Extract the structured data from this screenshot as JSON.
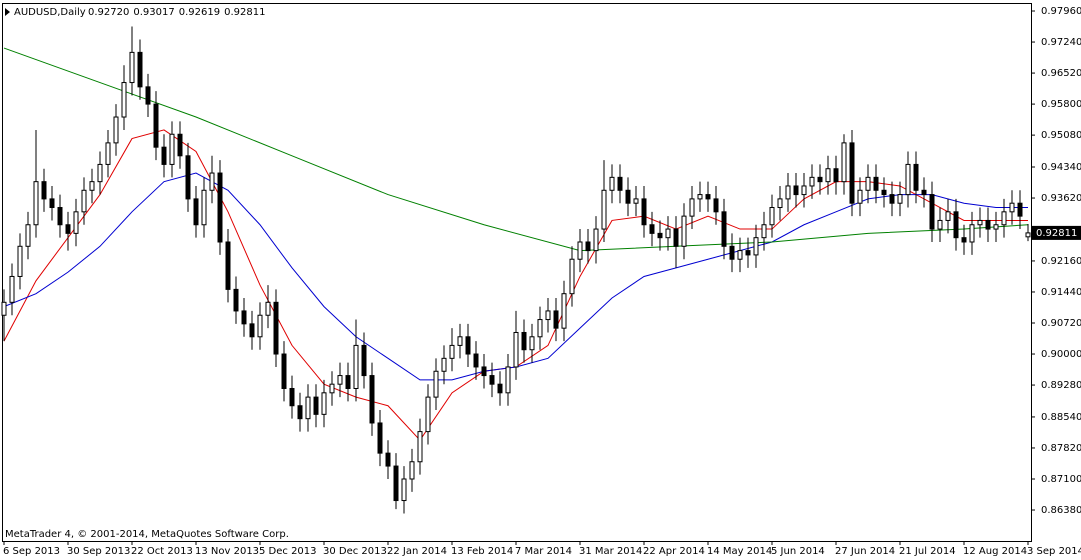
{
  "chart_data": {
    "type": "candlestick",
    "title": "AUDUSD,Daily",
    "quote": [
      "0.92720",
      "0.93017",
      "0.92619",
      "0.92811"
    ],
    "footer": "MetaTrader 4, © 2001-2014, MetaQuotes Software Corp.",
    "bull_color": "#ffffff",
    "bear_color": "#000000",
    "xlim": [
      -0.5,
      128.25
    ],
    "ylim": [
      0.85661,
      0.98146
    ],
    "xticks": [
      {
        "value": 0,
        "label": "6 Sep 2013"
      },
      {
        "value": 8,
        "label": "30 Sep 2013"
      },
      {
        "value": 16,
        "label": "22 Oct 2013"
      },
      {
        "value": 24,
        "label": "13 Nov 2013"
      },
      {
        "value": 32,
        "label": "5 Dec 2013"
      },
      {
        "value": 40,
        "label": "30 Dec 2013"
      },
      {
        "value": 48,
        "label": "22 Jan 2014"
      },
      {
        "value": 56,
        "label": "13 Feb 2014"
      },
      {
        "value": 64,
        "label": "7 Mar 2014"
      },
      {
        "value": 72,
        "label": "31 Mar 2014"
      },
      {
        "value": 80,
        "label": "22 Apr 2014"
      },
      {
        "value": 88,
        "label": "14 May 2014"
      },
      {
        "value": 96,
        "label": "5 Jun 2014"
      },
      {
        "value": 104,
        "label": "27 Jun 2014"
      },
      {
        "value": 112,
        "label": "21 Jul 2014"
      },
      {
        "value": 120,
        "label": "12 Aug 2014"
      },
      {
        "value": 128,
        "label": "3 Sep 2014"
      }
    ],
    "yticks": [
      {
        "value": 0.9796,
        "label": "0.97960"
      },
      {
        "value": 0.9724,
        "label": "0.97240"
      },
      {
        "value": 0.9652,
        "label": "0.96520"
      },
      {
        "value": 0.958,
        "label": "0.95800"
      },
      {
        "value": 0.9508,
        "label": "0.95080"
      },
      {
        "value": 0.9434,
        "label": "0.94340"
      },
      {
        "value": 0.9362,
        "label": "0.93620"
      },
      {
        "value": 0.9216,
        "label": "0.92160"
      },
      {
        "value": 0.9144,
        "label": "0.91440"
      },
      {
        "value": 0.9072,
        "label": "0.90720"
      },
      {
        "value": 0.9,
        "label": "0.90000"
      },
      {
        "value": 0.8928,
        "label": "0.89280"
      },
      {
        "value": 0.8854,
        "label": "0.88540"
      },
      {
        "value": 0.8782,
        "label": "0.87820"
      },
      {
        "value": 0.871,
        "label": "0.87100"
      },
      {
        "value": 0.8638,
        "label": "0.86380"
      }
    ],
    "price_label": {
      "value": 0.92811,
      "label": "0.92811"
    },
    "ohlc": [
      [
        0.909,
        0.915,
        0.903,
        0.912
      ],
      [
        0.912,
        0.921,
        0.909,
        0.918
      ],
      [
        0.918,
        0.928,
        0.915,
        0.925
      ],
      [
        0.925,
        0.933,
        0.922,
        0.93
      ],
      [
        0.93,
        0.952,
        0.927,
        0.94
      ],
      [
        0.94,
        0.943,
        0.933,
        0.936
      ],
      [
        0.936,
        0.939,
        0.931,
        0.934
      ],
      [
        0.934,
        0.937,
        0.927,
        0.93
      ],
      [
        0.93,
        0.933,
        0.924,
        0.928
      ],
      [
        0.928,
        0.936,
        0.925,
        0.933
      ],
      [
        0.933,
        0.941,
        0.93,
        0.938
      ],
      [
        0.938,
        0.943,
        0.935,
        0.94
      ],
      [
        0.94,
        0.947,
        0.937,
        0.944
      ],
      [
        0.944,
        0.952,
        0.941,
        0.949
      ],
      [
        0.949,
        0.958,
        0.946,
        0.955
      ],
      [
        0.955,
        0.967,
        0.952,
        0.963
      ],
      [
        0.963,
        0.976,
        0.96,
        0.97
      ],
      [
        0.97,
        0.973,
        0.959,
        0.962
      ],
      [
        0.962,
        0.965,
        0.955,
        0.958
      ],
      [
        0.958,
        0.961,
        0.945,
        0.948
      ],
      [
        0.948,
        0.951,
        0.941,
        0.944
      ],
      [
        0.944,
        0.954,
        0.941,
        0.951
      ],
      [
        0.951,
        0.954,
        0.943,
        0.946
      ],
      [
        0.946,
        0.949,
        0.933,
        0.936
      ],
      [
        0.936,
        0.939,
        0.927,
        0.93
      ],
      [
        0.93,
        0.941,
        0.927,
        0.938
      ],
      [
        0.938,
        0.946,
        0.935,
        0.942
      ],
      [
        0.942,
        0.945,
        0.923,
        0.926
      ],
      [
        0.926,
        0.929,
        0.912,
        0.915
      ],
      [
        0.915,
        0.918,
        0.907,
        0.91
      ],
      [
        0.91,
        0.913,
        0.904,
        0.907
      ],
      [
        0.907,
        0.91,
        0.901,
        0.904
      ],
      [
        0.904,
        0.912,
        0.901,
        0.909
      ],
      [
        0.909,
        0.916,
        0.906,
        0.912
      ],
      [
        0.912,
        0.915,
        0.897,
        0.9
      ],
      [
        0.9,
        0.903,
        0.889,
        0.892
      ],
      [
        0.892,
        0.895,
        0.885,
        0.888
      ],
      [
        0.888,
        0.891,
        0.882,
        0.885
      ],
      [
        0.885,
        0.893,
        0.882,
        0.89
      ],
      [
        0.89,
        0.893,
        0.883,
        0.886
      ],
      [
        0.886,
        0.894,
        0.883,
        0.891
      ],
      [
        0.891,
        0.896,
        0.888,
        0.893
      ],
      [
        0.893,
        0.898,
        0.89,
        0.895
      ],
      [
        0.895,
        0.898,
        0.889,
        0.892
      ],
      [
        0.892,
        0.908,
        0.889,
        0.902
      ],
      [
        0.902,
        0.905,
        0.892,
        0.895
      ],
      [
        0.895,
        0.898,
        0.881,
        0.884
      ],
      [
        0.884,
        0.887,
        0.874,
        0.877
      ],
      [
        0.877,
        0.88,
        0.871,
        0.874
      ],
      [
        0.874,
        0.877,
        0.864,
        0.866
      ],
      [
        0.866,
        0.874,
        0.863,
        0.871
      ],
      [
        0.871,
        0.878,
        0.868,
        0.875
      ],
      [
        0.875,
        0.885,
        0.872,
        0.882
      ],
      [
        0.882,
        0.893,
        0.879,
        0.89
      ],
      [
        0.89,
        0.899,
        0.887,
        0.896
      ],
      [
        0.896,
        0.902,
        0.893,
        0.899
      ],
      [
        0.899,
        0.906,
        0.896,
        0.902
      ],
      [
        0.902,
        0.907,
        0.899,
        0.904
      ],
      [
        0.904,
        0.907,
        0.897,
        0.9
      ],
      [
        0.9,
        0.903,
        0.894,
        0.897
      ],
      [
        0.897,
        0.9,
        0.892,
        0.895
      ],
      [
        0.895,
        0.898,
        0.89,
        0.893
      ],
      [
        0.893,
        0.896,
        0.888,
        0.891
      ],
      [
        0.891,
        0.9,
        0.888,
        0.897
      ],
      [
        0.897,
        0.91,
        0.894,
        0.905
      ],
      [
        0.905,
        0.908,
        0.898,
        0.901
      ],
      [
        0.901,
        0.907,
        0.898,
        0.904
      ],
      [
        0.904,
        0.911,
        0.901,
        0.908
      ],
      [
        0.908,
        0.913,
        0.905,
        0.91
      ],
      [
        0.91,
        0.913,
        0.903,
        0.906
      ],
      [
        0.906,
        0.917,
        0.903,
        0.914
      ],
      [
        0.914,
        0.925,
        0.911,
        0.922
      ],
      [
        0.922,
        0.929,
        0.919,
        0.926
      ],
      [
        0.926,
        0.929,
        0.921,
        0.924
      ],
      [
        0.924,
        0.932,
        0.921,
        0.929
      ],
      [
        0.929,
        0.945,
        0.926,
        0.938
      ],
      [
        0.938,
        0.944,
        0.935,
        0.941
      ],
      [
        0.941,
        0.944,
        0.935,
        0.938
      ],
      [
        0.938,
        0.941,
        0.932,
        0.935
      ],
      [
        0.935,
        0.939,
        0.932,
        0.936
      ],
      [
        0.936,
        0.939,
        0.927,
        0.93
      ],
      [
        0.93,
        0.933,
        0.925,
        0.928
      ],
      [
        0.928,
        0.931,
        0.924,
        0.927
      ],
      [
        0.927,
        0.932,
        0.924,
        0.929
      ],
      [
        0.929,
        0.932,
        0.92,
        0.925
      ],
      [
        0.925,
        0.935,
        0.922,
        0.932
      ],
      [
        0.932,
        0.939,
        0.929,
        0.936
      ],
      [
        0.936,
        0.94,
        0.933,
        0.937
      ],
      [
        0.937,
        0.94,
        0.933,
        0.936
      ],
      [
        0.936,
        0.939,
        0.93,
        0.933
      ],
      [
        0.933,
        0.936,
        0.922,
        0.925
      ],
      [
        0.925,
        0.928,
        0.919,
        0.922
      ],
      [
        0.922,
        0.927,
        0.919,
        0.924
      ],
      [
        0.924,
        0.927,
        0.92,
        0.923
      ],
      [
        0.923,
        0.93,
        0.92,
        0.927
      ],
      [
        0.927,
        0.933,
        0.924,
        0.93
      ],
      [
        0.93,
        0.937,
        0.927,
        0.934
      ],
      [
        0.934,
        0.939,
        0.931,
        0.936
      ],
      [
        0.936,
        0.942,
        0.933,
        0.939
      ],
      [
        0.939,
        0.942,
        0.934,
        0.937
      ],
      [
        0.937,
        0.942,
        0.934,
        0.939
      ],
      [
        0.939,
        0.944,
        0.936,
        0.941
      ],
      [
        0.941,
        0.944,
        0.937,
        0.94
      ],
      [
        0.94,
        0.946,
        0.937,
        0.943
      ],
      [
        0.943,
        0.946,
        0.937,
        0.94
      ],
      [
        0.94,
        0.951,
        0.937,
        0.949
      ],
      [
        0.949,
        0.952,
        0.932,
        0.935
      ],
      [
        0.935,
        0.941,
        0.932,
        0.938
      ],
      [
        0.938,
        0.944,
        0.935,
        0.941
      ],
      [
        0.941,
        0.944,
        0.935,
        0.938
      ],
      [
        0.938,
        0.941,
        0.934,
        0.937
      ],
      [
        0.937,
        0.94,
        0.932,
        0.935
      ],
      [
        0.935,
        0.94,
        0.932,
        0.937
      ],
      [
        0.937,
        0.947,
        0.934,
        0.944
      ],
      [
        0.944,
        0.947,
        0.935,
        0.938
      ],
      [
        0.938,
        0.941,
        0.934,
        0.937
      ],
      [
        0.937,
        0.94,
        0.926,
        0.929
      ],
      [
        0.929,
        0.934,
        0.926,
        0.931
      ],
      [
        0.931,
        0.936,
        0.928,
        0.933
      ],
      [
        0.933,
        0.936,
        0.924,
        0.927
      ],
      [
        0.927,
        0.93,
        0.923,
        0.926
      ],
      [
        0.926,
        0.933,
        0.923,
        0.93
      ],
      [
        0.93,
        0.934,
        0.927,
        0.931
      ],
      [
        0.931,
        0.934,
        0.926,
        0.929
      ],
      [
        0.929,
        0.933,
        0.926,
        0.93
      ],
      [
        0.93,
        0.936,
        0.927,
        0.933
      ],
      [
        0.933,
        0.938,
        0.93,
        0.935
      ],
      [
        0.935,
        0.938,
        0.929,
        0.932
      ],
      [
        0.9272,
        0.93017,
        0.92619,
        0.92811
      ]
    ],
    "lines": [
      {
        "color": "#e00000",
        "x": [
          0,
          4,
          8,
          12,
          16,
          20,
          24,
          28,
          32,
          36,
          40,
          44,
          48,
          52,
          56,
          60,
          64,
          68,
          72,
          76,
          80,
          84,
          88,
          92,
          96,
          100,
          104,
          108,
          112,
          116,
          120,
          124,
          128
        ],
        "values": [
          0.903,
          0.917,
          0.927,
          0.937,
          0.95,
          0.952,
          0.947,
          0.933,
          0.916,
          0.902,
          0.893,
          0.89,
          0.888,
          0.88,
          0.891,
          0.896,
          0.897,
          0.902,
          0.918,
          0.931,
          0.932,
          0.929,
          0.932,
          0.929,
          0.929,
          0.936,
          0.94,
          0.94,
          0.939,
          0.935,
          0.931,
          0.931,
          0.931
        ]
      },
      {
        "color": "#0000d0",
        "x": [
          0,
          4,
          8,
          12,
          16,
          20,
          24,
          28,
          32,
          36,
          40,
          44,
          48,
          52,
          56,
          60,
          64,
          68,
          72,
          76,
          80,
          84,
          88,
          92,
          96,
          100,
          104,
          108,
          112,
          116,
          120,
          124,
          128
        ],
        "values": [
          0.911,
          0.914,
          0.919,
          0.925,
          0.933,
          0.94,
          0.942,
          0.938,
          0.93,
          0.92,
          0.911,
          0.904,
          0.899,
          0.894,
          0.894,
          0.896,
          0.897,
          0.899,
          0.906,
          0.913,
          0.918,
          0.92,
          0.922,
          0.924,
          0.926,
          0.93,
          0.933,
          0.936,
          0.937,
          0.937,
          0.935,
          0.934,
          0.934
        ]
      },
      {
        "color": "#008000",
        "x": [
          0,
          12,
          24,
          36,
          48,
          60,
          72,
          84,
          96,
          108,
          120,
          128
        ],
        "values": [
          0.971,
          0.963,
          0.955,
          0.946,
          0.937,
          0.93,
          0.924,
          0.925,
          0.926,
          0.928,
          0.929,
          0.93
        ]
      }
    ]
  }
}
